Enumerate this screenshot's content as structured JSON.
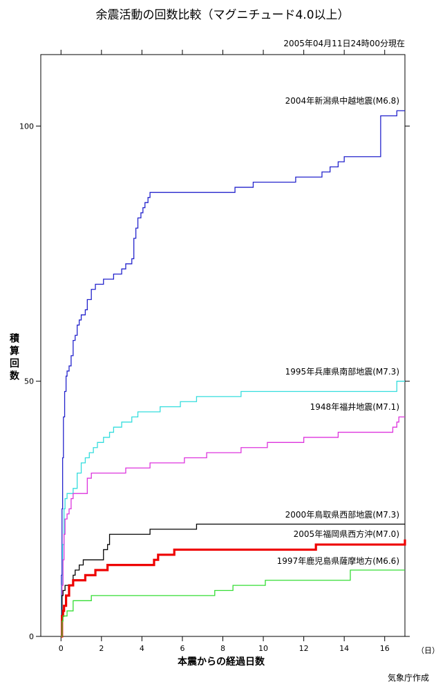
{
  "chart_data": {
    "type": "line",
    "title": "余震活動の回数比較（マグニチュード4.0以上）",
    "as_of": "2005年04月11日24時00分現在",
    "xlabel": "本震からの経過日数",
    "x_unit": "（日）",
    "ylabel": "積算回数",
    "credit": "気象庁作成",
    "xlim": [
      -1,
      17
    ],
    "ylim": [
      0,
      114
    ],
    "x_ticks": [
      0,
      2,
      4,
      6,
      8,
      10,
      12,
      14,
      16
    ],
    "y_ticks": [
      0,
      50,
      100
    ],
    "grid": false,
    "legend": "inline-labels",
    "series": [
      {
        "name": "2004年新潟県中越地震(M6.8)",
        "color": "#2222cc",
        "width": 1.3,
        "points": [
          [
            0,
            0
          ],
          [
            0.02,
            12
          ],
          [
            0.05,
            25
          ],
          [
            0.08,
            35
          ],
          [
            0.12,
            43
          ],
          [
            0.18,
            48
          ],
          [
            0.25,
            51
          ],
          [
            0.3,
            52
          ],
          [
            0.4,
            53
          ],
          [
            0.5,
            55
          ],
          [
            0.6,
            58
          ],
          [
            0.7,
            59
          ],
          [
            0.8,
            61
          ],
          [
            0.9,
            62
          ],
          [
            1.0,
            63
          ],
          [
            1.2,
            64
          ],
          [
            1.3,
            66
          ],
          [
            1.5,
            68
          ],
          [
            1.7,
            69
          ],
          [
            2.0,
            69
          ],
          [
            2.1,
            70
          ],
          [
            2.6,
            71
          ],
          [
            3.0,
            72
          ],
          [
            3.2,
            73
          ],
          [
            3.5,
            74
          ],
          [
            3.6,
            78
          ],
          [
            3.7,
            80
          ],
          [
            3.8,
            82
          ],
          [
            3.95,
            83
          ],
          [
            4.05,
            84
          ],
          [
            4.15,
            85
          ],
          [
            4.3,
            86
          ],
          [
            4.4,
            87
          ],
          [
            8.5,
            87
          ],
          [
            8.6,
            88
          ],
          [
            9.5,
            89
          ],
          [
            11.5,
            89
          ],
          [
            11.6,
            90
          ],
          [
            12.8,
            90
          ],
          [
            12.9,
            91
          ],
          [
            13.3,
            92
          ],
          [
            13.6,
            92
          ],
          [
            13.7,
            93
          ],
          [
            14.0,
            94
          ],
          [
            15.7,
            94
          ],
          [
            15.8,
            102
          ],
          [
            16.5,
            102
          ],
          [
            16.6,
            103
          ],
          [
            17,
            103
          ]
        ]
      },
      {
        "name": "1995年兵庫県南部地震(M7.3)",
        "color": "#33dddd",
        "width": 1.3,
        "points": [
          [
            0,
            0
          ],
          [
            0.03,
            10
          ],
          [
            0.08,
            18
          ],
          [
            0.15,
            25
          ],
          [
            0.2,
            27
          ],
          [
            0.3,
            28
          ],
          [
            0.5,
            28
          ],
          [
            0.6,
            29
          ],
          [
            0.8,
            32
          ],
          [
            1.0,
            34
          ],
          [
            1.2,
            35
          ],
          [
            1.4,
            36
          ],
          [
            1.6,
            37
          ],
          [
            1.8,
            38
          ],
          [
            2.1,
            39
          ],
          [
            2.4,
            40
          ],
          [
            2.6,
            41
          ],
          [
            3.0,
            42
          ],
          [
            3.5,
            43
          ],
          [
            3.8,
            44
          ],
          [
            4.8,
            44
          ],
          [
            4.9,
            45
          ],
          [
            5.8,
            45
          ],
          [
            5.9,
            46
          ],
          [
            6.6,
            46
          ],
          [
            6.7,
            47
          ],
          [
            8.8,
            47
          ],
          [
            8.9,
            48
          ],
          [
            16.5,
            48
          ],
          [
            16.6,
            50
          ],
          [
            17,
            50
          ]
        ]
      },
      {
        "name": "1948年福井地震(M7.1)",
        "color": "#dd33dd",
        "width": 1.3,
        "points": [
          [
            0,
            0
          ],
          [
            0.05,
            10
          ],
          [
            0.1,
            15
          ],
          [
            0.15,
            20
          ],
          [
            0.2,
            23
          ],
          [
            0.3,
            24
          ],
          [
            0.4,
            25
          ],
          [
            0.5,
            27
          ],
          [
            0.6,
            28
          ],
          [
            1.2,
            28
          ],
          [
            1.3,
            31
          ],
          [
            1.5,
            32
          ],
          [
            3.1,
            32
          ],
          [
            3.2,
            33
          ],
          [
            4.3,
            33
          ],
          [
            4.4,
            34
          ],
          [
            6.0,
            34
          ],
          [
            6.1,
            35
          ],
          [
            7.1,
            35
          ],
          [
            7.2,
            36
          ],
          [
            8.8,
            36
          ],
          [
            8.9,
            37
          ],
          [
            10.1,
            37
          ],
          [
            10.2,
            38
          ],
          [
            11.9,
            38
          ],
          [
            12.0,
            39
          ],
          [
            13.6,
            39
          ],
          [
            13.7,
            40
          ],
          [
            16.3,
            40
          ],
          [
            16.4,
            41
          ],
          [
            16.6,
            42
          ],
          [
            16.7,
            43
          ],
          [
            17,
            43
          ]
        ]
      },
      {
        "name": "2000年鳥取県西部地震(M7.3)",
        "color": "#000000",
        "width": 1.3,
        "points": [
          [
            0,
            0
          ],
          [
            0.05,
            8
          ],
          [
            0.1,
            9
          ],
          [
            0.2,
            10
          ],
          [
            0.5,
            10
          ],
          [
            0.6,
            12
          ],
          [
            0.7,
            13
          ],
          [
            0.9,
            14
          ],
          [
            1.1,
            15
          ],
          [
            2.0,
            15
          ],
          [
            2.1,
            17
          ],
          [
            2.3,
            18
          ],
          [
            2.4,
            20
          ],
          [
            4.3,
            20
          ],
          [
            4.4,
            21
          ],
          [
            6.6,
            21
          ],
          [
            6.7,
            22
          ],
          [
            17,
            22
          ]
        ]
      },
      {
        "name": "2005年福岡県西方沖(M7.0)",
        "color": "#ee0000",
        "width": 3.2,
        "points": [
          [
            0,
            0
          ],
          [
            0.05,
            4
          ],
          [
            0.1,
            5
          ],
          [
            0.15,
            6
          ],
          [
            0.25,
            8
          ],
          [
            0.4,
            10
          ],
          [
            0.6,
            11
          ],
          [
            1.1,
            11
          ],
          [
            1.2,
            12
          ],
          [
            1.6,
            12
          ],
          [
            1.7,
            13
          ],
          [
            2.2,
            13
          ],
          [
            2.3,
            14
          ],
          [
            4.5,
            14
          ],
          [
            4.6,
            15
          ],
          [
            4.8,
            16
          ],
          [
            5.5,
            16
          ],
          [
            5.6,
            17
          ],
          [
            12.5,
            17
          ],
          [
            12.6,
            18
          ],
          [
            16.9,
            18
          ],
          [
            17,
            19
          ]
        ]
      },
      {
        "name": "1997年鹿児島県薩摩地方(M6.6)",
        "color": "#33dd33",
        "width": 1.3,
        "points": [
          [
            0,
            0
          ],
          [
            0.05,
            3
          ],
          [
            0.1,
            4
          ],
          [
            0.3,
            5
          ],
          [
            0.6,
            7
          ],
          [
            1.4,
            7
          ],
          [
            1.5,
            8
          ],
          [
            7.5,
            8
          ],
          [
            7.6,
            9
          ],
          [
            8.4,
            9
          ],
          [
            8.5,
            10
          ],
          [
            10.0,
            10
          ],
          [
            10.1,
            11
          ],
          [
            14.2,
            11
          ],
          [
            14.3,
            13
          ],
          [
            17,
            13
          ]
        ]
      }
    ]
  }
}
